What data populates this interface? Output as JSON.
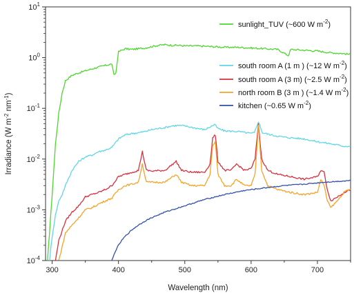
{
  "chart_data": {
    "type": "line",
    "xlabel": "Wavelength (nm)",
    "ylabel": "Irradiance (W m-2 nm-1)",
    "xlim": [
      290,
      750
    ],
    "ylim": [
      0.0001,
      10
    ],
    "yscale": "log",
    "xticks": [
      300,
      400,
      500,
      600,
      700
    ],
    "yticks": [
      "10^-4",
      "10^-3",
      "10^-2",
      "10^-1",
      "10^0",
      "10^1"
    ],
    "legend_placement": [
      "top-right",
      "right"
    ],
    "grid": false,
    "series": [
      {
        "name": "sunlight_TUV (~600 W m-2)",
        "color": "#4cd62e",
        "x": [
          293,
          300,
          305,
          310,
          315,
          320,
          330,
          340,
          350,
          360,
          370,
          380,
          390,
          393,
          396,
          400,
          405,
          410,
          420,
          430,
          440,
          450,
          460,
          470,
          480,
          490,
          500,
          520,
          540,
          560,
          580,
          600,
          620,
          640,
          656,
          660,
          680,
          700,
          720,
          740,
          750
        ],
        "y": [
          0.0001,
          0.002,
          0.02,
          0.08,
          0.2,
          0.35,
          0.45,
          0.5,
          0.55,
          0.6,
          0.65,
          0.7,
          0.75,
          0.45,
          0.5,
          1.3,
          1.4,
          1.5,
          1.45,
          1.5,
          1.55,
          1.65,
          1.75,
          1.8,
          1.75,
          1.75,
          1.7,
          1.7,
          1.65,
          1.6,
          1.6,
          1.55,
          1.5,
          1.45,
          1.1,
          1.45,
          1.4,
          1.35,
          1.25,
          1.2,
          1.15
        ]
      },
      {
        "name": "south room A (1 m ) (~12 W m-2)",
        "color": "#5fd6e8",
        "x": [
          296,
          300,
          305,
          310,
          315,
          320,
          330,
          340,
          350,
          360,
          370,
          380,
          390,
          400,
          410,
          420,
          430,
          440,
          450,
          460,
          470,
          480,
          490,
          500,
          520,
          530,
          545,
          550,
          560,
          580,
          600,
          605,
          611,
          617,
          630,
          650,
          680,
          700,
          720,
          740,
          750
        ],
        "y": [
          0.0001,
          0.0003,
          0.0008,
          0.0015,
          0.002,
          0.003,
          0.006,
          0.009,
          0.011,
          0.012,
          0.014,
          0.015,
          0.017,
          0.025,
          0.03,
          0.032,
          0.033,
          0.035,
          0.038,
          0.04,
          0.042,
          0.045,
          0.046,
          0.045,
          0.04,
          0.038,
          0.048,
          0.04,
          0.036,
          0.035,
          0.032,
          0.033,
          0.055,
          0.033,
          0.03,
          0.027,
          0.025,
          0.022,
          0.02,
          0.018,
          0.018
        ]
      },
      {
        "name": "south room A (3 m) (~2.5 W m-2)",
        "color": "#d92e3c",
        "x": [
          305,
          310,
          320,
          330,
          340,
          350,
          360,
          370,
          380,
          390,
          400,
          410,
          420,
          430,
          436,
          442,
          450,
          470,
          487,
          495,
          510,
          530,
          538,
          542,
          546,
          550,
          560,
          570,
          578,
          590,
          600,
          606,
          611,
          616,
          625,
          640,
          660,
          680,
          700,
          705,
          710,
          715,
          720,
          730,
          740,
          750
        ],
        "y": [
          0.0001,
          0.00025,
          0.0006,
          0.0009,
          0.0012,
          0.0018,
          0.002,
          0.0022,
          0.0025,
          0.003,
          0.0045,
          0.005,
          0.0055,
          0.006,
          0.014,
          0.006,
          0.0058,
          0.006,
          0.009,
          0.006,
          0.0055,
          0.0055,
          0.008,
          0.026,
          0.03,
          0.009,
          0.006,
          0.006,
          0.008,
          0.006,
          0.0065,
          0.01,
          0.05,
          0.01,
          0.006,
          0.005,
          0.0045,
          0.004,
          0.0045,
          0.006,
          0.0055,
          0.0025,
          0.0015,
          0.0018,
          0.0022,
          0.0025
        ]
      },
      {
        "name": "north room B (3 m )  (~1.4 W m-2)",
        "color": "#f5a326",
        "x": [
          310,
          320,
          330,
          340,
          350,
          360,
          370,
          380,
          390,
          400,
          410,
          420,
          430,
          436,
          442,
          450,
          470,
          487,
          495,
          510,
          530,
          538,
          542,
          546,
          550,
          560,
          570,
          578,
          590,
          600,
          606,
          611,
          616,
          625,
          640,
          660,
          680,
          700,
          705,
          710,
          715,
          720,
          730,
          740,
          750
        ],
        "y": [
          0.0001,
          0.00035,
          0.0005,
          0.0007,
          0.001,
          0.0011,
          0.0013,
          0.0015,
          0.0017,
          0.0025,
          0.003,
          0.0032,
          0.0035,
          0.008,
          0.0035,
          0.0035,
          0.0035,
          0.005,
          0.0035,
          0.003,
          0.003,
          0.005,
          0.018,
          0.022,
          0.005,
          0.003,
          0.003,
          0.004,
          0.003,
          0.003,
          0.005,
          0.045,
          0.006,
          0.003,
          0.0025,
          0.0022,
          0.002,
          0.0022,
          0.004,
          0.003,
          0.0015,
          0.0011,
          0.0015,
          0.0022,
          0.0026
        ]
      },
      {
        "name": "kitchen (~0.65 W m-2)",
        "color": "#2f4fa8",
        "x": [
          390,
          395,
          400,
          405,
          410,
          420,
          430,
          440,
          450,
          470,
          500,
          530,
          560,
          590,
          620,
          650,
          680,
          710,
          740,
          750
        ],
        "y": [
          0.0001,
          0.00015,
          0.0002,
          0.00025,
          0.0003,
          0.0004,
          0.0005,
          0.0006,
          0.0007,
          0.0009,
          0.0012,
          0.0016,
          0.002,
          0.0024,
          0.0027,
          0.003,
          0.0032,
          0.0035,
          0.0037,
          0.0038
        ]
      }
    ]
  }
}
